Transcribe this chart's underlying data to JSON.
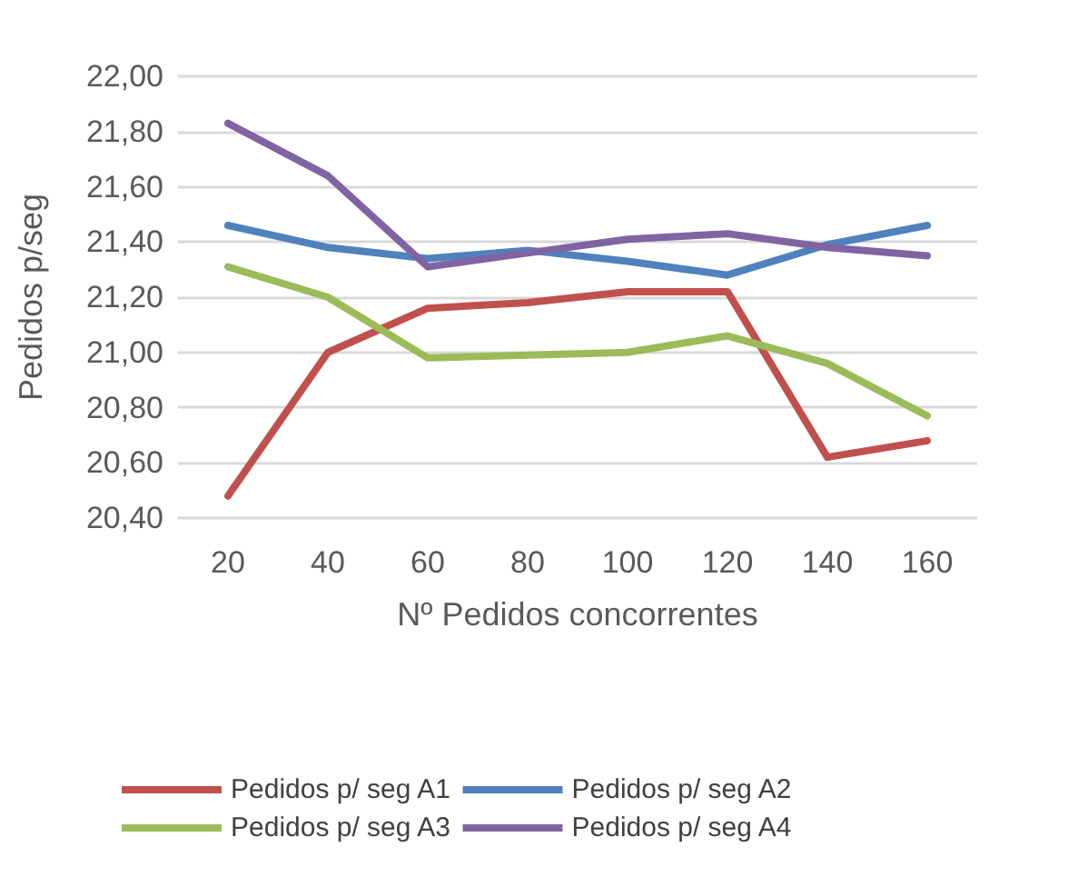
{
  "chart_data": {
    "type": "line",
    "xlabel": "Nº Pedidos concorrentes",
    "ylabel": "Pedidos p/seg",
    "categories": [
      "20",
      "40",
      "60",
      "80",
      "100",
      "120",
      "140",
      "160"
    ],
    "series": [
      {
        "name": "Pedidos p/ seg A1",
        "color": "#c0504d",
        "values": [
          20.48,
          21.0,
          21.16,
          21.18,
          21.22,
          21.22,
          20.62,
          20.68
        ]
      },
      {
        "name": "Pedidos p/ seg A2",
        "color": "#4f81bd",
        "values": [
          21.46,
          21.38,
          21.34,
          21.37,
          21.33,
          21.28,
          21.39,
          21.46
        ]
      },
      {
        "name": "Pedidos p/ seg A3",
        "color": "#9bbb59",
        "values": [
          21.31,
          21.2,
          20.98,
          20.99,
          21.0,
          21.06,
          20.96,
          20.77
        ]
      },
      {
        "name": "Pedidos p/ seg A4",
        "color": "#8064a2",
        "values": [
          21.83,
          21.64,
          21.31,
          21.36,
          21.41,
          21.43,
          21.38,
          21.35
        ]
      }
    ],
    "ylim": [
      20.4,
      22.0
    ],
    "yticks": [
      {
        "value": 20.4,
        "label": "20,40"
      },
      {
        "value": 20.6,
        "label": "20,60"
      },
      {
        "value": 20.8,
        "label": "20,80"
      },
      {
        "value": 21.0,
        "label": "21,00"
      },
      {
        "value": 21.2,
        "label": "21,20"
      },
      {
        "value": 21.4,
        "label": "21,40"
      },
      {
        "value": 21.6,
        "label": "21,60"
      },
      {
        "value": 21.8,
        "label": "21,80"
      },
      {
        "value": 22.0,
        "label": "22,00"
      }
    ],
    "grid": "y",
    "legend": "bottom",
    "marker": "none",
    "line_style": "solid"
  }
}
